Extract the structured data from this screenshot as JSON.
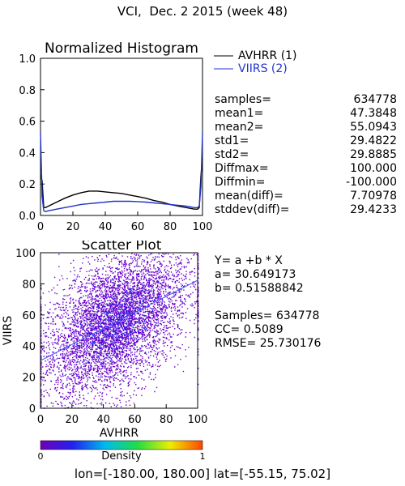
{
  "title": "VCI,  Dec. 2 2015 (week 48)",
  "histogram": {
    "title": "Normalized Histogram",
    "legend": [
      {
        "label": "AVHRR (1)",
        "color": "#000000"
      },
      {
        "label": "VIIRS (2)",
        "color": "#2233cc"
      }
    ],
    "stats": [
      {
        "label": "samples=",
        "value": "634778"
      },
      {
        "label": "mean1=",
        "value": "47.3848"
      },
      {
        "label": "mean2=",
        "value": "55.0943"
      },
      {
        "label": "std1=",
        "value": "29.4822"
      },
      {
        "label": "std2=",
        "value": "29.8885"
      },
      {
        "label": "Diffmax=",
        "value": "100.000"
      },
      {
        "label": "Diffmin=",
        "value": "-100.000"
      },
      {
        "label": "mean(diff)=",
        "value": "7.70978"
      },
      {
        "label": "stddev(diff)=",
        "value": "29.4233"
      }
    ]
  },
  "scatter": {
    "title": "Scatter Plot",
    "regression": [
      {
        "label": "Y= a +b * X",
        "value": ""
      },
      {
        "label": "a= 30.649173",
        "value": ""
      },
      {
        "label": "b= 0.51588842",
        "value": ""
      },
      {
        "label": "",
        "value": ""
      },
      {
        "label": "Samples= 634778",
        "value": ""
      },
      {
        "label": "CC=  0.5089",
        "value": ""
      },
      {
        "label": "RMSE= 25.730176",
        "value": ""
      }
    ]
  },
  "colorbar": {
    "min": "0",
    "max": "1",
    "label": "Density"
  },
  "footer": "lon=[-180.00, 180.00] lat=[-55.15, 75.02]",
  "chart_data": [
    {
      "type": "line",
      "title": "Normalized Histogram",
      "xlim": [
        0,
        100
      ],
      "ylim": [
        0,
        1
      ],
      "xticks": [
        0,
        20,
        40,
        60,
        80,
        100
      ],
      "yticks": [
        "0.0",
        "0.2",
        "0.4",
        "0.6",
        "0.8",
        "1.0"
      ],
      "series": [
        {
          "name": "AVHRR (1)",
          "color": "#000000",
          "x": [
            0,
            1,
            2,
            3,
            5,
            10,
            15,
            20,
            25,
            30,
            35,
            40,
            45,
            50,
            55,
            60,
            65,
            70,
            75,
            80,
            85,
            90,
            95,
            97,
            98,
            99,
            100
          ],
          "y": [
            0.26,
            0.22,
            0.05,
            0.05,
            0.06,
            0.085,
            0.11,
            0.13,
            0.145,
            0.155,
            0.155,
            0.15,
            0.145,
            0.14,
            0.13,
            0.12,
            0.11,
            0.095,
            0.085,
            0.07,
            0.06,
            0.05,
            0.04,
            0.04,
            0.05,
            0.25,
            0.36
          ]
        },
        {
          "name": "VIIRS (2)",
          "color": "#2233cc",
          "x": [
            0,
            1,
            2,
            3,
            5,
            10,
            15,
            20,
            25,
            30,
            35,
            40,
            45,
            50,
            55,
            60,
            65,
            70,
            75,
            80,
            85,
            90,
            95,
            97,
            98,
            99,
            100
          ],
          "y": [
            0.53,
            0.12,
            0.03,
            0.025,
            0.03,
            0.04,
            0.05,
            0.06,
            0.07,
            0.075,
            0.08,
            0.085,
            0.09,
            0.09,
            0.09,
            0.088,
            0.085,
            0.08,
            0.075,
            0.07,
            0.065,
            0.06,
            0.05,
            0.05,
            0.06,
            0.18,
            0.53
          ]
        }
      ]
    },
    {
      "type": "scatter",
      "title": "Scatter Plot",
      "xlabel": "AVHRR",
      "ylabel": "VIIRS",
      "xlim": [
        0,
        100
      ],
      "ylim": [
        0,
        100
      ],
      "xticks": [
        0,
        20,
        40,
        60,
        80,
        100
      ],
      "yticks": [
        0,
        20,
        40,
        60,
        80,
        100
      ],
      "fit": {
        "a": 30.649173,
        "b": 0.51588842
      },
      "samples": 634778,
      "cc": 0.5089,
      "rmse": 25.730176
    }
  ]
}
